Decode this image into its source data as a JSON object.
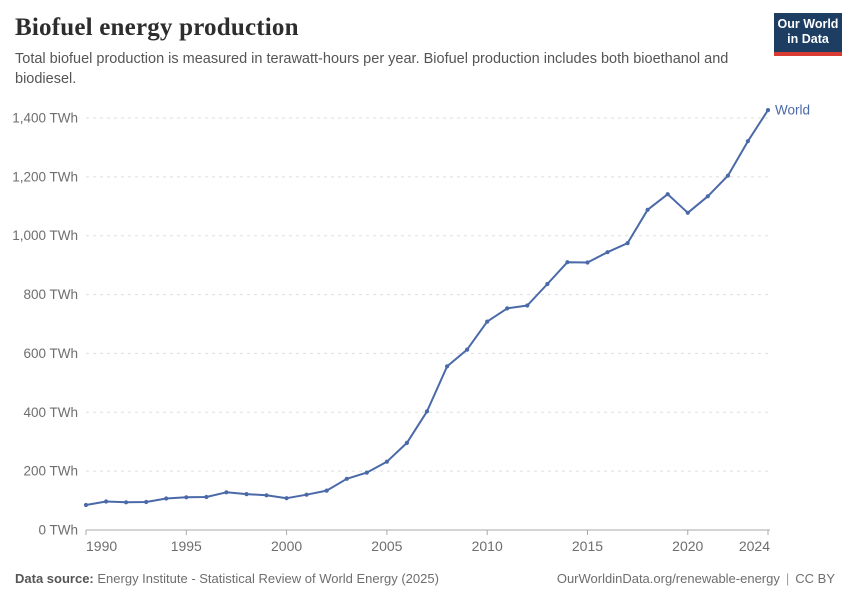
{
  "header": {
    "title": "Biofuel energy production",
    "subtitle": "Total biofuel production is measured in terawatt-hours per year. Biofuel production includes both bioethanol and biodiesel.",
    "logo": {
      "line1": "Our World",
      "line2": "in Data",
      "bg_color": "#1d3d63",
      "accent_color": "#d93a32"
    }
  },
  "chart_data": {
    "type": "line",
    "title": "Biofuel energy production",
    "xlabel": "",
    "ylabel": "",
    "y_unit": "TWh",
    "xlim": [
      1990,
      2024
    ],
    "ylim": [
      0,
      1400
    ],
    "x_ticks": [
      1990,
      1995,
      2000,
      2005,
      2010,
      2015,
      2020,
      2024
    ],
    "y_ticks": [
      0,
      200,
      400,
      600,
      800,
      1000,
      1200,
      1400
    ],
    "grid": "horizontal-dashed",
    "legend_position": "end-of-line-label",
    "axis_color": "#a8a8a8",
    "gridline_color": "#dedede",
    "tick_label_color": "#6e6e6e",
    "series": [
      {
        "name": "World",
        "color": "#4a69a8",
        "x": [
          1990,
          1991,
          1992,
          1993,
          1994,
          1995,
          1996,
          1997,
          1998,
          1999,
          2000,
          2001,
          2002,
          2003,
          2004,
          2005,
          2006,
          2007,
          2008,
          2009,
          2010,
          2011,
          2012,
          2013,
          2014,
          2015,
          2016,
          2017,
          2018,
          2019,
          2020,
          2021,
          2022,
          2023,
          2024
        ],
        "values": [
          85,
          97,
          94,
          95,
          107,
          111,
          112,
          128,
          122,
          118,
          108,
          120,
          134,
          174,
          195,
          232,
          296,
          403,
          556,
          613,
          708,
          753,
          763,
          836,
          910,
          909,
          944,
          975,
          1088,
          1141,
          1078,
          1134,
          1204,
          1321,
          1427
        ]
      }
    ]
  },
  "footer": {
    "datasource_label": "Data source:",
    "datasource": "Energy Institute - Statistical Review of World Energy (2025)",
    "url": "OurWorldinData.org/renewable-energy",
    "separator": "|",
    "license": "CC BY"
  }
}
